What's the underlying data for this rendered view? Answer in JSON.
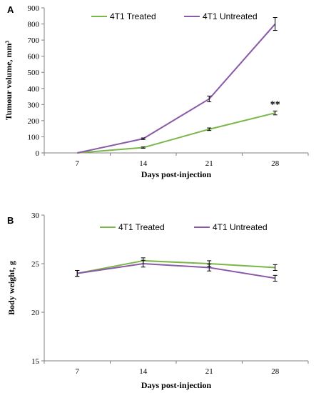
{
  "colors": {
    "treated": "#7ab648",
    "untreated": "#8a5aa8",
    "axis": "#808080",
    "errorbar": "#000000"
  },
  "chart_data": [
    {
      "panel": "A",
      "type": "line",
      "xlabel": "Days post-injection",
      "ylabel": "Tumour volume, mm³",
      "x": [
        7,
        14,
        21,
        28
      ],
      "categories": [
        "7",
        "14",
        "21",
        "28"
      ],
      "ylim": [
        0,
        900
      ],
      "yticks": [
        0,
        100,
        200,
        300,
        400,
        500,
        600,
        700,
        800,
        900
      ],
      "ytick_labels": [
        "0",
        "100",
        "200",
        "300",
        "400",
        "500",
        "600",
        "700",
        "800",
        "900"
      ],
      "grid": false,
      "legend_position": "top",
      "series": [
        {
          "name": "4T1 Treated",
          "color": "#7ab648",
          "values": [
            0,
            33,
            147,
            248
          ],
          "errors": [
            0,
            4,
            8,
            12
          ]
        },
        {
          "name": "4T1 Untreated",
          "color": "#8a5aa8",
          "values": [
            0,
            88,
            335,
            800
          ],
          "errors": [
            0,
            5,
            18,
            40
          ]
        }
      ],
      "annotations": [
        {
          "text": "**",
          "x": 28,
          "y": 300
        }
      ]
    },
    {
      "panel": "B",
      "type": "line",
      "xlabel": "Days post-injection",
      "ylabel": "Body weight, g",
      "x": [
        7,
        14,
        21,
        28
      ],
      "categories": [
        "7",
        "14",
        "21",
        "28"
      ],
      "ylim": [
        15,
        30
      ],
      "yticks": [
        15,
        20,
        25,
        30
      ],
      "ytick_labels": [
        "15",
        "20",
        "25",
        "30"
      ],
      "grid": false,
      "legend_position": "top",
      "series": [
        {
          "name": "4T1 Treated",
          "color": "#7ab648",
          "values": [
            24.0,
            25.3,
            25.0,
            24.6
          ],
          "errors": [
            0.3,
            0.3,
            0.3,
            0.3
          ]
        },
        {
          "name": "4T1 Untreated",
          "color": "#8a5aa8",
          "values": [
            24.0,
            25.0,
            24.6,
            23.5
          ],
          "errors": [
            0.3,
            0.35,
            0.35,
            0.3
          ]
        }
      ],
      "annotations": []
    }
  ]
}
